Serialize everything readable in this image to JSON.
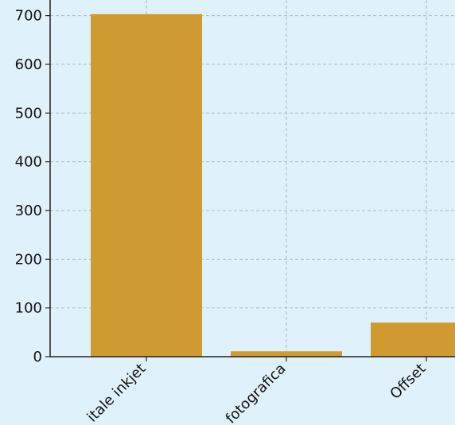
{
  "chart_data": {
    "type": "bar",
    "categories": [
      "itale inkjet",
      "fotografica",
      "Offset"
    ],
    "values": [
      703,
      11,
      70
    ],
    "color": "#cf9a2f",
    "ylim": [
      0,
      732
    ],
    "yticks": [
      0,
      100,
      200,
      300,
      400,
      500,
      600,
      700
    ],
    "grid": true
  }
}
